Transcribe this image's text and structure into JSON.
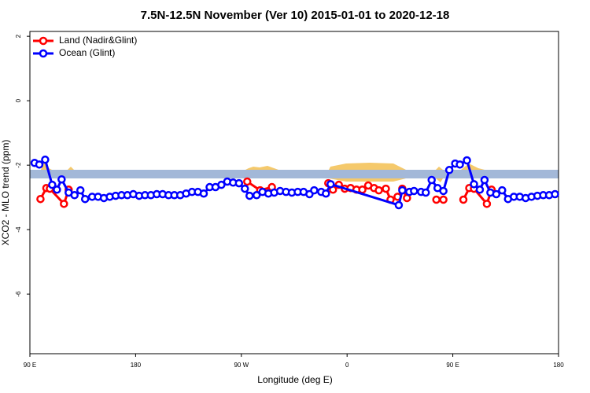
{
  "chart_data": {
    "type": "line",
    "title": "7.5N-12.5N November (Ver 10)   2015-01-01 to 2020-12-18",
    "x_label": "Longitude (deg E)",
    "y_label": "XCO2 - MLO trend (ppm)",
    "xlim": [
      90,
      540
    ],
    "ylim": [
      -7.85,
      2.15
    ],
    "xticks": [
      {
        "value": 90,
        "label": "90 E"
      },
      180,
      {
        "value": 270,
        "label": "90 W"
      },
      {
        "value": 360,
        "label": "0"
      },
      {
        "value": 450,
        "label": "90 E"
      },
      {
        "value": 540,
        "label": "180"
      }
    ],
    "yticks": [
      2,
      0,
      -2,
      -4,
      -6
    ],
    "legend": "topleft",
    "series": [
      {
        "name": "Land (Nadir&Glint)",
        "color": "#ff0000",
        "x": [
          99,
          104,
          107,
          119,
          123,
          null,
          275,
          286,
          296,
          null,
          344,
          348,
          353,
          358,
          363,
          368,
          373,
          378,
          383,
          387,
          393,
          397,
          403,
          407,
          411,
          null,
          436,
          442,
          null,
          459,
          464,
          468,
          479,
          483
        ],
        "values": [
          -3.05,
          -2.71,
          -2.73,
          -3.2,
          -2.76,
          null,
          -2.51,
          -2.78,
          -2.68,
          null,
          -2.56,
          -2.76,
          -2.61,
          -2.73,
          -2.71,
          -2.76,
          -2.76,
          -2.63,
          -2.71,
          -2.78,
          -2.73,
          -3.07,
          -2.98,
          -2.73,
          -3.02,
          null,
          -3.07,
          -3.07,
          null,
          -3.07,
          -2.71,
          -2.73,
          -3.2,
          -2.76
        ]
      },
      {
        "name": "Ocean (Glint)",
        "color": "#0000ff",
        "x": [
          94,
          98,
          103,
          109,
          113,
          117,
          123,
          128,
          133,
          137,
          143,
          148,
          153,
          158,
          163,
          168,
          173,
          178,
          183,
          188,
          193,
          198,
          203,
          208,
          213,
          218,
          223,
          228,
          233,
          238,
          243,
          248,
          253,
          258,
          263,
          268,
          273,
          277,
          283,
          288,
          293,
          298,
          303,
          308,
          313,
          318,
          323,
          328,
          332,
          338,
          342,
          346,
          404,
          407,
          413,
          417,
          423,
          427,
          432,
          437,
          442,
          447,
          452,
          456,
          462,
          468,
          473,
          477,
          482,
          487,
          492,
          497,
          502,
          507,
          512,
          517,
          522,
          527,
          532,
          537
        ],
        "values": [
          -1.93,
          -1.98,
          -1.83,
          -2.61,
          -2.76,
          -2.44,
          -2.85,
          -2.93,
          -2.78,
          -3.05,
          -2.98,
          -2.98,
          -3.02,
          -2.98,
          -2.95,
          -2.93,
          -2.93,
          -2.9,
          -2.95,
          -2.93,
          -2.93,
          -2.9,
          -2.9,
          -2.93,
          -2.93,
          -2.93,
          -2.88,
          -2.83,
          -2.83,
          -2.88,
          -2.68,
          -2.68,
          -2.61,
          -2.51,
          -2.54,
          -2.56,
          -2.73,
          -2.95,
          -2.93,
          -2.83,
          -2.88,
          -2.85,
          -2.8,
          -2.83,
          -2.85,
          -2.83,
          -2.83,
          -2.9,
          -2.78,
          -2.83,
          -2.88,
          -2.59,
          -3.24,
          -2.78,
          -2.83,
          -2.8,
          -2.83,
          -2.85,
          -2.46,
          -2.71,
          -2.8,
          -2.15,
          -1.95,
          -1.98,
          -1.85,
          -2.59,
          -2.76,
          -2.46,
          -2.85,
          -2.9,
          -2.78,
          -3.05,
          -2.98,
          -2.98,
          -3.02,
          -2.98,
          -2.95,
          -2.93,
          -2.93,
          -2.9
        ]
      }
    ]
  }
}
